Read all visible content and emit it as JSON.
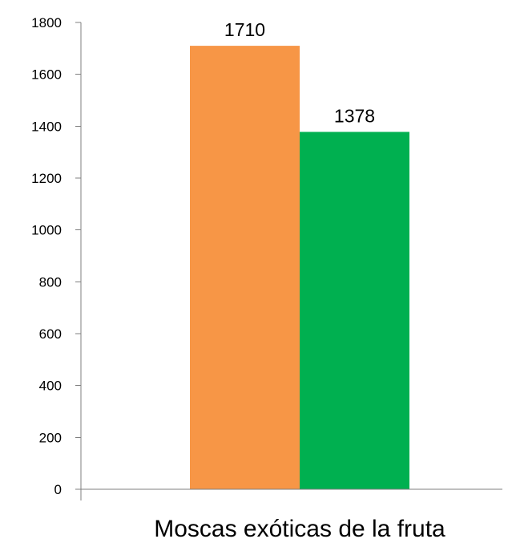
{
  "chart_data": {
    "type": "bar",
    "categories": [
      "Moscas exóticas de la fruta"
    ],
    "series": [
      {
        "values": [
          1710
        ],
        "color": "#F79646"
      },
      {
        "values": [
          1378
        ],
        "color": "#00B050"
      }
    ],
    "data_labels": [
      "1710",
      "1378"
    ],
    "yticks": [
      "0",
      "200",
      "400",
      "600",
      "800",
      "1000",
      "1200",
      "1400",
      "1600",
      "1800"
    ],
    "ylim": [
      0,
      1800
    ],
    "grid": false,
    "legend": "none",
    "title": "",
    "xlabel": "",
    "ylabel": ""
  }
}
